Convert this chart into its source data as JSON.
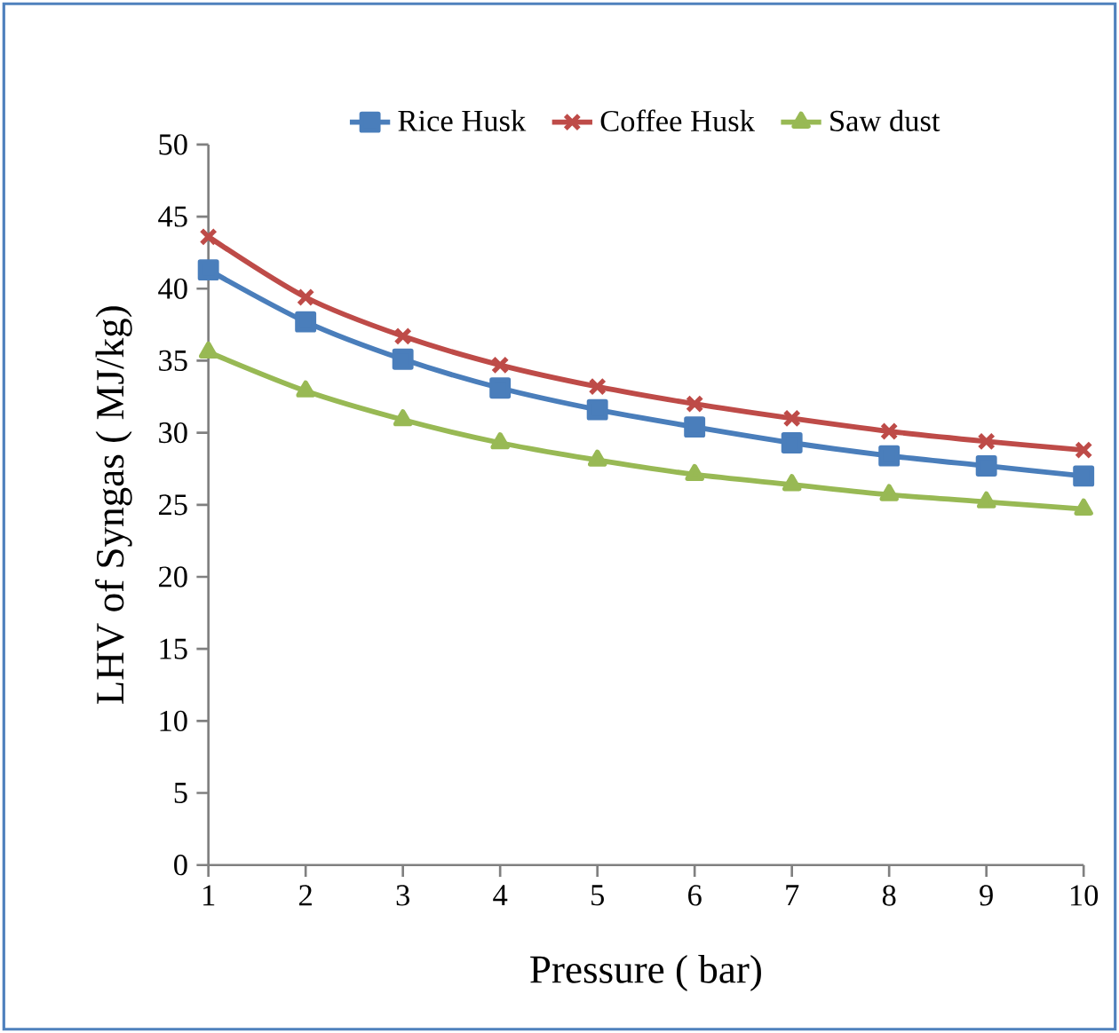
{
  "chart_data": {
    "type": "line",
    "xlabel": "Pressure ( bar)",
    "ylabel": "LHV of Syngas ( MJ/kg)",
    "x": [
      1,
      2,
      3,
      4,
      5,
      6,
      7,
      8,
      9,
      10
    ],
    "series": [
      {
        "name": "Rice Husk",
        "color": "#4a7ebb",
        "marker": "square",
        "values": [
          41.3,
          37.7,
          35.1,
          33.1,
          31.6,
          30.4,
          29.3,
          28.4,
          27.7,
          27.0
        ]
      },
      {
        "name": "Coffee Husk",
        "color": "#be4b48",
        "marker": "cross",
        "values": [
          43.6,
          39.4,
          36.7,
          34.7,
          33.2,
          32.0,
          31.0,
          30.1,
          29.4,
          28.8
        ]
      },
      {
        "name": "Saw dust",
        "color": "#98b954",
        "marker": "triangle",
        "values": [
          35.6,
          32.9,
          30.9,
          29.3,
          28.1,
          27.1,
          26.4,
          25.7,
          25.2,
          24.7
        ]
      }
    ],
    "xlim": [
      1,
      10
    ],
    "xticks": [
      1,
      2,
      3,
      4,
      5,
      6,
      7,
      8,
      9,
      10
    ],
    "ylim": [
      0,
      50
    ],
    "yticks": [
      0,
      5,
      10,
      15,
      20,
      25,
      30,
      35,
      40,
      45,
      50
    ],
    "legend": "top",
    "grid": false,
    "line_style": "solid"
  }
}
